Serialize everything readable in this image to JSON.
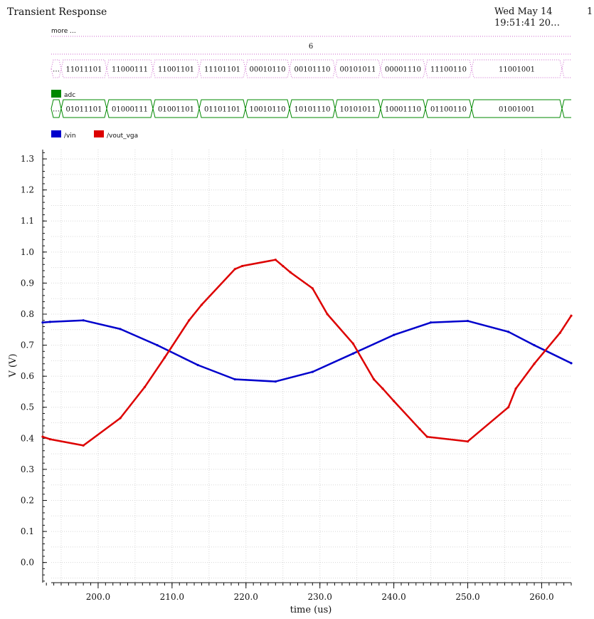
{
  "header": {
    "title": "Transient Response",
    "date_line1": "Wed May 14",
    "date_line2": "19:51:41 20…",
    "corner": "1"
  },
  "digital": {
    "more_label": "more ...",
    "bus1_value": "6",
    "bus2_values": [
      "…",
      "11011101",
      "11000111",
      "11001101",
      "11101101",
      "00010110",
      "00101110",
      "00101011",
      "00001110",
      "11100110",
      "11001001"
    ],
    "adc_label": "adc",
    "adc_values": [
      "…",
      "01011101",
      "01000111",
      "01001101",
      "01101101",
      "10010110",
      "10101110",
      "10101011",
      "10001110",
      "01100110",
      "01001001"
    ],
    "adc_color": "#008800",
    "bus_color": "#cc66cc"
  },
  "legend": [
    {
      "name": "/vin",
      "color": "#0000cc"
    },
    {
      "name": "/vout_vga",
      "color": "#dd0000"
    }
  ],
  "chart_data": {
    "type": "line",
    "title": "",
    "xlabel": "time (us)",
    "ylabel": "V (V)",
    "xlim": [
      192.5,
      264.0
    ],
    "ylim": [
      -0.065,
      1.33
    ],
    "xticks": [
      200.0,
      210.0,
      220.0,
      230.0,
      240.0,
      250.0,
      260.0
    ],
    "yticks": [
      0.0,
      0.1,
      0.2,
      0.3,
      0.4,
      0.5,
      0.6,
      0.7,
      0.8,
      0.9,
      1.0,
      1.1,
      1.2,
      1.3
    ],
    "grid": true,
    "series": [
      {
        "name": "/vin",
        "color": "#0000cc",
        "x": [
          192.5,
          193.5,
          198.0,
          203.0,
          208.0,
          213.5,
          218.5,
          224.0,
          229.0,
          234.5,
          240.0,
          245.0,
          250.0,
          255.5,
          259.0,
          264.0
        ],
        "y": [
          0.773,
          0.775,
          0.78,
          0.752,
          0.7,
          0.636,
          0.59,
          0.583,
          0.614,
          0.673,
          0.733,
          0.773,
          0.778,
          0.743,
          0.7,
          0.642
        ]
      },
      {
        "name": "/vout_vga",
        "color": "#dd0000",
        "x": [
          192.5,
          193.5,
          198.0,
          203.0,
          206.3,
          209.0,
          212.3,
          214.0,
          218.5,
          219.5,
          224.0,
          225.0,
          226.0,
          229.0,
          231.0,
          234.5,
          237.3,
          238.5,
          240.0,
          243.5,
          244.5,
          250.0,
          255.5,
          256.5,
          259.0,
          262.5,
          264.0
        ],
        "y": [
          0.405,
          0.397,
          0.377,
          0.465,
          0.565,
          0.66,
          0.78,
          0.83,
          0.945,
          0.955,
          0.975,
          0.955,
          0.935,
          0.883,
          0.8,
          0.705,
          0.59,
          0.56,
          0.52,
          0.43,
          0.405,
          0.39,
          0.5,
          0.56,
          0.64,
          0.74,
          0.795
        ]
      }
    ]
  }
}
